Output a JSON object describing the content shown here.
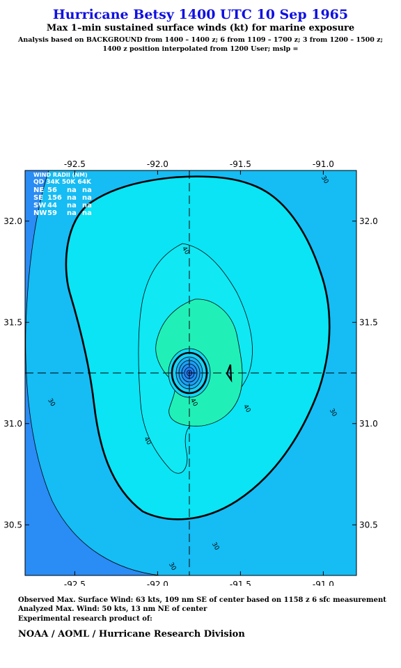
{
  "header": {
    "title": "Hurricane Betsy 1400 UTC 10 Sep 1965",
    "subtitle": "Max 1–min sustained surface winds (kt) for marine exposure",
    "analysis_line1": "Analysis based on  BACKGROUND from 1400 – 1400 z;  6 from 1109 – 1700 z;  3 from 1200 – 1500 z;",
    "analysis_line2": "1400 z position interpolated from 1200 User; mslp ="
  },
  "wind_radii": {
    "title": "WIND RADII (NM)",
    "header": "QD 34K 50K 64K",
    "rows": [
      {
        "quadrant": "NE",
        "r34": "56",
        "r50": "na",
        "r64": "na"
      },
      {
        "quadrant": "SE",
        "r34": "156",
        "r50": "na",
        "r64": "na"
      },
      {
        "quadrant": "SW",
        "r34": "44",
        "r50": "na",
        "r64": "na"
      },
      {
        "quadrant": "NW",
        "r34": "59",
        "r50": "na",
        "r64": "na"
      }
    ]
  },
  "chart_data": {
    "type": "contour",
    "xlim": [
      -92.8,
      -90.8
    ],
    "ylim": [
      30.25,
      32.25
    ],
    "x_ticks": [
      "-92.5",
      "-92.0",
      "-91.5",
      "-91.0"
    ],
    "x_tick_values": [
      -92.5,
      -92.0,
      -91.5,
      -91.0
    ],
    "y_ticks": [
      "30.5",
      "31.0",
      "31.5",
      "32.0"
    ],
    "y_tick_values": [
      30.5,
      31.0,
      31.5,
      32.0
    ],
    "center": {
      "lon": -91.8,
      "lat": 31.25
    },
    "contour_labels": [
      {
        "text": "30",
        "lon": -92.65,
        "lat": 31.1
      },
      {
        "text": "30",
        "lon": -91.0,
        "lat": 32.2
      },
      {
        "text": "30",
        "lon": -90.95,
        "lat": 31.05
      },
      {
        "text": "30",
        "lon": -91.92,
        "lat": 30.29
      },
      {
        "text": "30",
        "lon": -91.66,
        "lat": 30.39
      },
      {
        "text": "40",
        "lon": -91.84,
        "lat": 31.85
      },
      {
        "text": "40",
        "lon": -91.47,
        "lat": 31.07
      },
      {
        "text": "40",
        "lon": -92.07,
        "lat": 30.91
      },
      {
        "text": "40",
        "lon": -91.79,
        "lat": 31.1
      }
    ],
    "colors": {
      "outer": "#2a8cf5",
      "band30": "#16bcf4",
      "band40": "#0ae4f4",
      "band45": "#20f0b8",
      "core": "#10d8f4"
    }
  },
  "footer": {
    "line1": "Observed Max. Surface Wind: 63 kts, 109 nm SE of center based on 1158 z 6 sfc measurement",
    "line2": "Analyzed Max. Wind: 50 kts, 13 nm NE of center",
    "line3": "Experimental research product of:",
    "org": "NOAA / AOML / Hurricane Research Division"
  }
}
